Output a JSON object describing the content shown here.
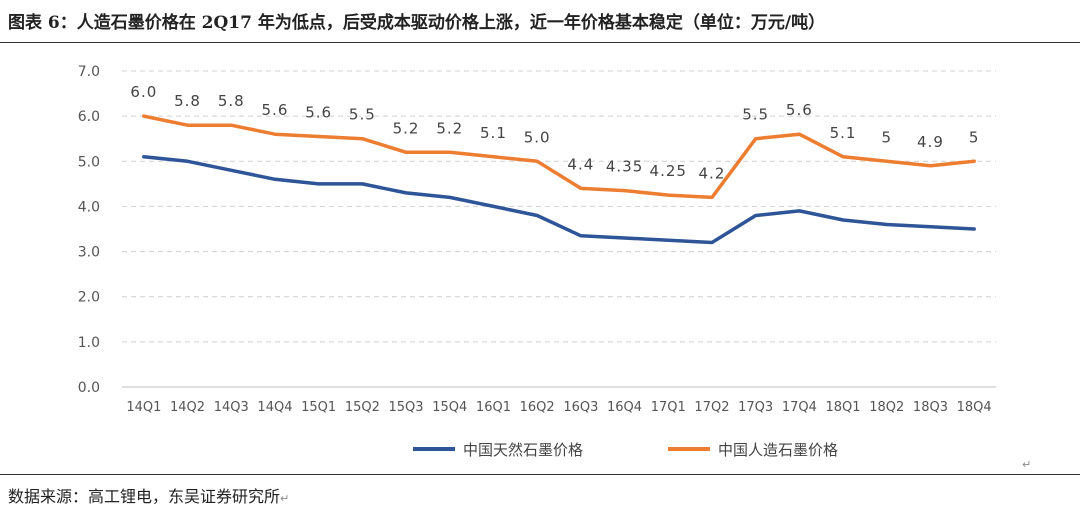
{
  "header": {
    "title": "图表 6：人造石墨价格在 2Q17 年为低点，后受成本驱动价格上涨，近一年价格基本稳定（单位：万元/吨）",
    "para_mark": "↵"
  },
  "footer": {
    "source": "数据来源：高工锂电，东吴证券研究所",
    "para_mark": "↵"
  },
  "chart_data": {
    "type": "line",
    "categories": [
      "14Q1",
      "14Q2",
      "14Q3",
      "14Q4",
      "15Q1",
      "15Q2",
      "15Q3",
      "15Q4",
      "16Q1",
      "16Q2",
      "16Q3",
      "16Q4",
      "17Q1",
      "17Q2",
      "17Q3",
      "17Q4",
      "18Q1",
      "18Q2",
      "18Q3",
      "18Q4"
    ],
    "ylim": [
      0,
      7
    ],
    "yticks": [
      "0.0",
      "1.0",
      "2.0",
      "3.0",
      "4.0",
      "5.0",
      "6.0",
      "7.0"
    ],
    "grid": true,
    "legend_position": "bottom",
    "series": [
      {
        "name": "中国天然石墨价格",
        "color": "#2E5597",
        "values": [
          5.1,
          5.0,
          4.8,
          4.6,
          4.5,
          4.5,
          4.3,
          4.2,
          4.0,
          3.8,
          3.35,
          3.3,
          3.25,
          3.2,
          3.8,
          3.9,
          3.7,
          3.6,
          3.55,
          3.5
        ],
        "labels": []
      },
      {
        "name": "中国人造石墨价格",
        "color": "#ED7D31",
        "values": [
          6.0,
          5.8,
          5.8,
          5.6,
          5.55,
          5.5,
          5.2,
          5.2,
          5.1,
          5.0,
          4.4,
          4.35,
          4.25,
          4.2,
          5.5,
          5.6,
          5.1,
          5.0,
          4.9,
          5.0
        ],
        "labels": [
          "6.0",
          "5.8",
          "5.8",
          "5.6",
          "5.6",
          "5.5",
          "5.2",
          "5.2",
          "5.1",
          "5.0",
          "4.4",
          "4.35",
          "4.25",
          "4.2",
          "5.5",
          "5.6",
          "5.1",
          "5",
          "4.9",
          "5"
        ]
      }
    ]
  }
}
